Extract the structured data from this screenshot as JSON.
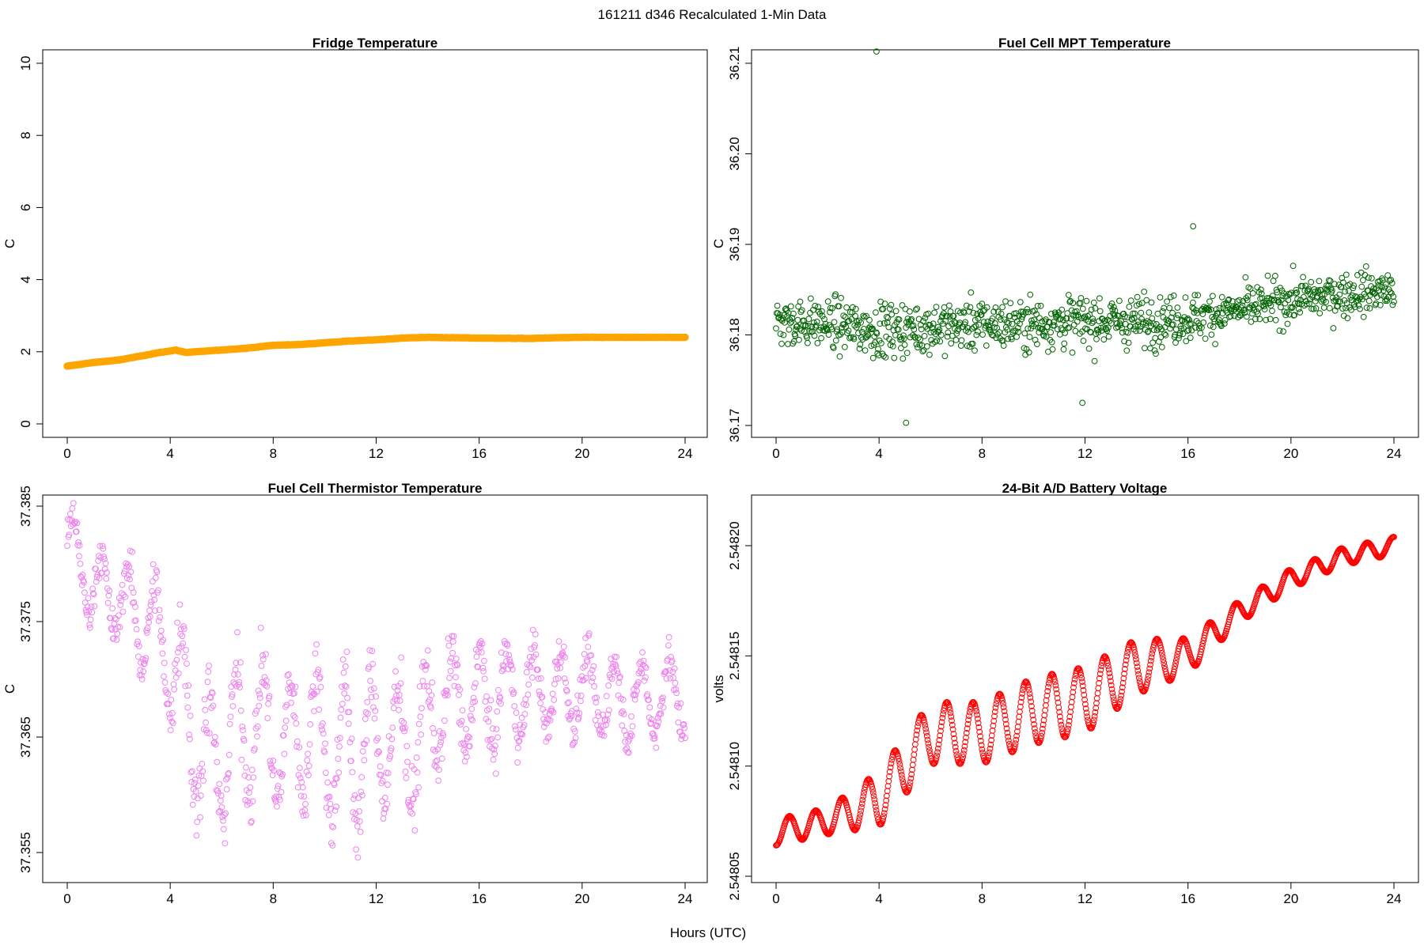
{
  "figure": {
    "suptitle": "161211   d346   Recalculated 1-Min Data",
    "xlabel": "Hours (UTC)"
  },
  "chart_data": [
    {
      "type": "scatter",
      "title": "Fridge Temperature",
      "ylabel": "C",
      "xlim": [
        0,
        24
      ],
      "ylim": [
        0,
        10
      ],
      "xticks": [
        0,
        4,
        8,
        12,
        16,
        20,
        24
      ],
      "yticks": [
        0,
        2,
        4,
        6,
        8,
        10
      ],
      "ytick_labels": [
        "0",
        "2",
        "4",
        "6",
        "8",
        "10"
      ],
      "color": "#FFA500",
      "marker": "filled",
      "series": [
        {
          "name": "Fridge Temperature",
          "x": [
            0,
            1,
            2,
            3,
            3.5,
            4,
            4.2,
            4.6,
            6,
            7,
            8,
            9,
            10,
            11,
            12,
            13,
            14,
            16,
            18,
            19,
            20,
            22,
            24
          ],
          "y": [
            1.6,
            1.7,
            1.77,
            1.9,
            1.97,
            2.02,
            2.05,
            1.98,
            2.05,
            2.1,
            2.18,
            2.2,
            2.25,
            2.3,
            2.33,
            2.38,
            2.4,
            2.38,
            2.37,
            2.39,
            2.4,
            2.4,
            2.4
          ]
        }
      ]
    },
    {
      "type": "scatter",
      "title": "Fuel Cell MPT Temperature",
      "ylabel": "C",
      "xlim": [
        0,
        24
      ],
      "ylim": [
        36.17,
        36.21
      ],
      "xticks": [
        0,
        4,
        8,
        12,
        16,
        20,
        24
      ],
      "yticks": [
        36.17,
        36.18,
        36.19,
        36.2,
        36.21
      ],
      "ytick_labels": [
        "36.17",
        "36.18",
        "36.19",
        "36.20",
        "36.21"
      ],
      "color": "#006400",
      "marker": "open",
      "series": [
        {
          "name": "Fuel Cell MPT Temperature",
          "x": [
            0,
            2,
            4,
            6,
            8,
            10,
            12,
            14,
            16,
            18,
            20,
            22,
            24
          ],
          "y": [
            36.1815,
            36.1812,
            36.1805,
            36.1808,
            36.1812,
            36.1812,
            36.1815,
            36.1815,
            36.1818,
            36.1828,
            36.1838,
            36.1845,
            36.185
          ],
          "spread": [
            0.0028,
            0.0028,
            0.0032,
            0.003,
            0.003,
            0.003,
            0.003,
            0.003,
            0.0028,
            0.0026,
            0.0026,
            0.0026,
            0.0026
          ],
          "outliers": [
            [
              3.9,
              36.2113
            ],
            [
              5.05,
              36.1703
            ],
            [
              11.9,
              36.1725
            ],
            [
              16.2,
              36.192
            ]
          ]
        }
      ]
    },
    {
      "type": "scatter",
      "title": "Fuel Cell Thermistor Temperature",
      "ylabel": "C",
      "xlim": [
        0,
        24
      ],
      "ylim": [
        37.355,
        37.385
      ],
      "xticks": [
        0,
        4,
        8,
        12,
        16,
        20,
        24
      ],
      "yticks": [
        37.355,
        37.365,
        37.375,
        37.385
      ],
      "ytick_labels": [
        "37.355",
        "37.365",
        "37.375",
        "37.385"
      ],
      "color": "#EE82EE",
      "marker": "open",
      "series": [
        {
          "name": "Fuel Cell Thermistor Temperature",
          "x": [
            0,
            1,
            2,
            3,
            4,
            4.6,
            5.5,
            6.5,
            7.5,
            8.5,
            9.5,
            10.5,
            11.5,
            12.5,
            13.5,
            14.5,
            16,
            18,
            20,
            22,
            24
          ],
          "y": [
            37.382,
            37.378,
            37.377,
            37.375,
            37.372,
            37.368,
            37.362,
            37.365,
            37.366,
            37.364,
            37.366,
            37.363,
            37.364,
            37.365,
            37.364,
            37.368,
            37.368,
            37.369,
            37.369,
            37.368,
            37.369
          ],
          "spread": [
            0.003,
            0.0035,
            0.0035,
            0.0045,
            0.0055,
            0.007,
            0.007,
            0.006,
            0.006,
            0.006,
            0.006,
            0.007,
            0.007,
            0.006,
            0.006,
            0.005,
            0.005,
            0.004,
            0.0035,
            0.0035,
            0.0035
          ]
        }
      ]
    },
    {
      "type": "scatter",
      "title": "24-Bit A/D Battery Voltage",
      "ylabel": "volts",
      "xlim": [
        0,
        24
      ],
      "ylim": [
        2.54805,
        2.54822
      ],
      "xticks": [
        0,
        4,
        8,
        12,
        16,
        20,
        24
      ],
      "yticks": [
        2.54805,
        2.5481,
        2.54815,
        2.5482
      ],
      "ytick_labels": [
        "2.54805",
        "2.54810",
        "2.54815",
        "2.54820"
      ],
      "color": "#FF0000",
      "marker": "open",
      "series": [
        {
          "name": "24-Bit A/D Battery Voltage",
          "x": [
            0,
            2,
            4,
            6,
            8,
            10,
            12,
            14,
            16,
            18,
            20,
            22,
            24
          ],
          "y": [
            2.54807,
            2.548075,
            2.548085,
            2.548115,
            2.548115,
            2.548125,
            2.54813,
            2.548145,
            2.54815,
            2.54817,
            2.548185,
            2.548195,
            2.5482
          ],
          "amplitude": [
            1.2e-05,
            1.2e-05,
            2.5e-05,
            2.8e-05,
            2.8e-05,
            3e-05,
            3e-05,
            2.5e-05,
            1.6e-05,
            1e-05,
            9e-06,
            8e-06,
            8e-06
          ]
        }
      ]
    }
  ]
}
